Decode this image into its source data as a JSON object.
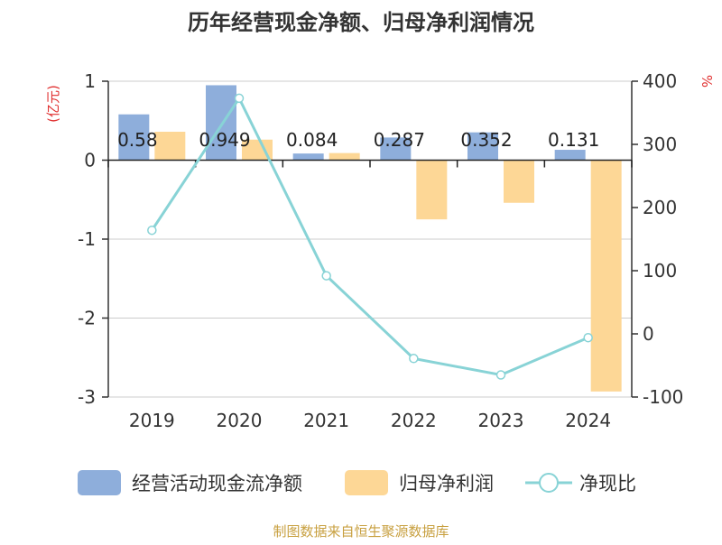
{
  "chart_data": {
    "type": "bar+line",
    "title": "历年经营现金净额、归母净利润情况",
    "categories": [
      "2019",
      "2020",
      "2021",
      "2022",
      "2023",
      "2024"
    ],
    "left_axis": {
      "unit_label": "(亿元)",
      "range": [
        -3,
        1
      ],
      "ticks": [
        1,
        0,
        -1,
        -2,
        -3
      ]
    },
    "right_axis": {
      "unit_label": "%",
      "range": [
        -100,
        400
      ],
      "ticks": [
        400,
        300,
        200,
        100,
        0,
        -100
      ]
    },
    "series": [
      {
        "name": "经营活动现金流净额",
        "kind": "bar",
        "axis": "left",
        "color": "#8eaedb",
        "values": [
          0.58,
          0.949,
          0.084,
          0.287,
          0.352,
          0.131
        ],
        "labels": [
          "0.58",
          "0.949",
          "0.084",
          "0.287",
          "0.352",
          "0.131"
        ]
      },
      {
        "name": "归母净利润",
        "kind": "bar",
        "axis": "left",
        "color": "#fdd796",
        "values": [
          0.36,
          0.26,
          0.09,
          -0.75,
          -0.54,
          -2.93
        ]
      },
      {
        "name": "净现比",
        "kind": "line",
        "axis": "right",
        "color": "#88d3d6",
        "values": [
          164,
          373,
          92,
          -39,
          -65,
          -6
        ]
      }
    ],
    "grid": true,
    "legend_position": "bottom",
    "source": "制图数据来自恒生聚源数据库",
    "source_color": "#c8a040",
    "unit_color": "#e03030"
  }
}
